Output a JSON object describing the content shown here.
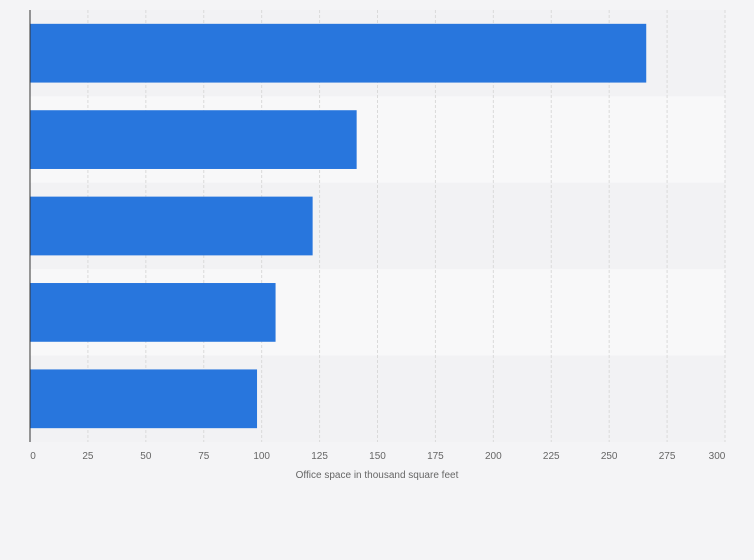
{
  "chart_data": {
    "type": "bar",
    "orientation": "horizontal",
    "categories": [
      "",
      "",
      "",
      "",
      ""
    ],
    "values": [
      266,
      141,
      122,
      106,
      98
    ],
    "title": "",
    "xlabel": "Office space in thousand square feet",
    "ylabel": "",
    "xlim": [
      0,
      300
    ],
    "x_ticks": [
      0,
      25,
      50,
      75,
      100,
      125,
      150,
      175,
      200,
      225,
      250,
      275,
      300
    ],
    "grid": true,
    "legend": "none",
    "bar_color": "#2876dd"
  }
}
